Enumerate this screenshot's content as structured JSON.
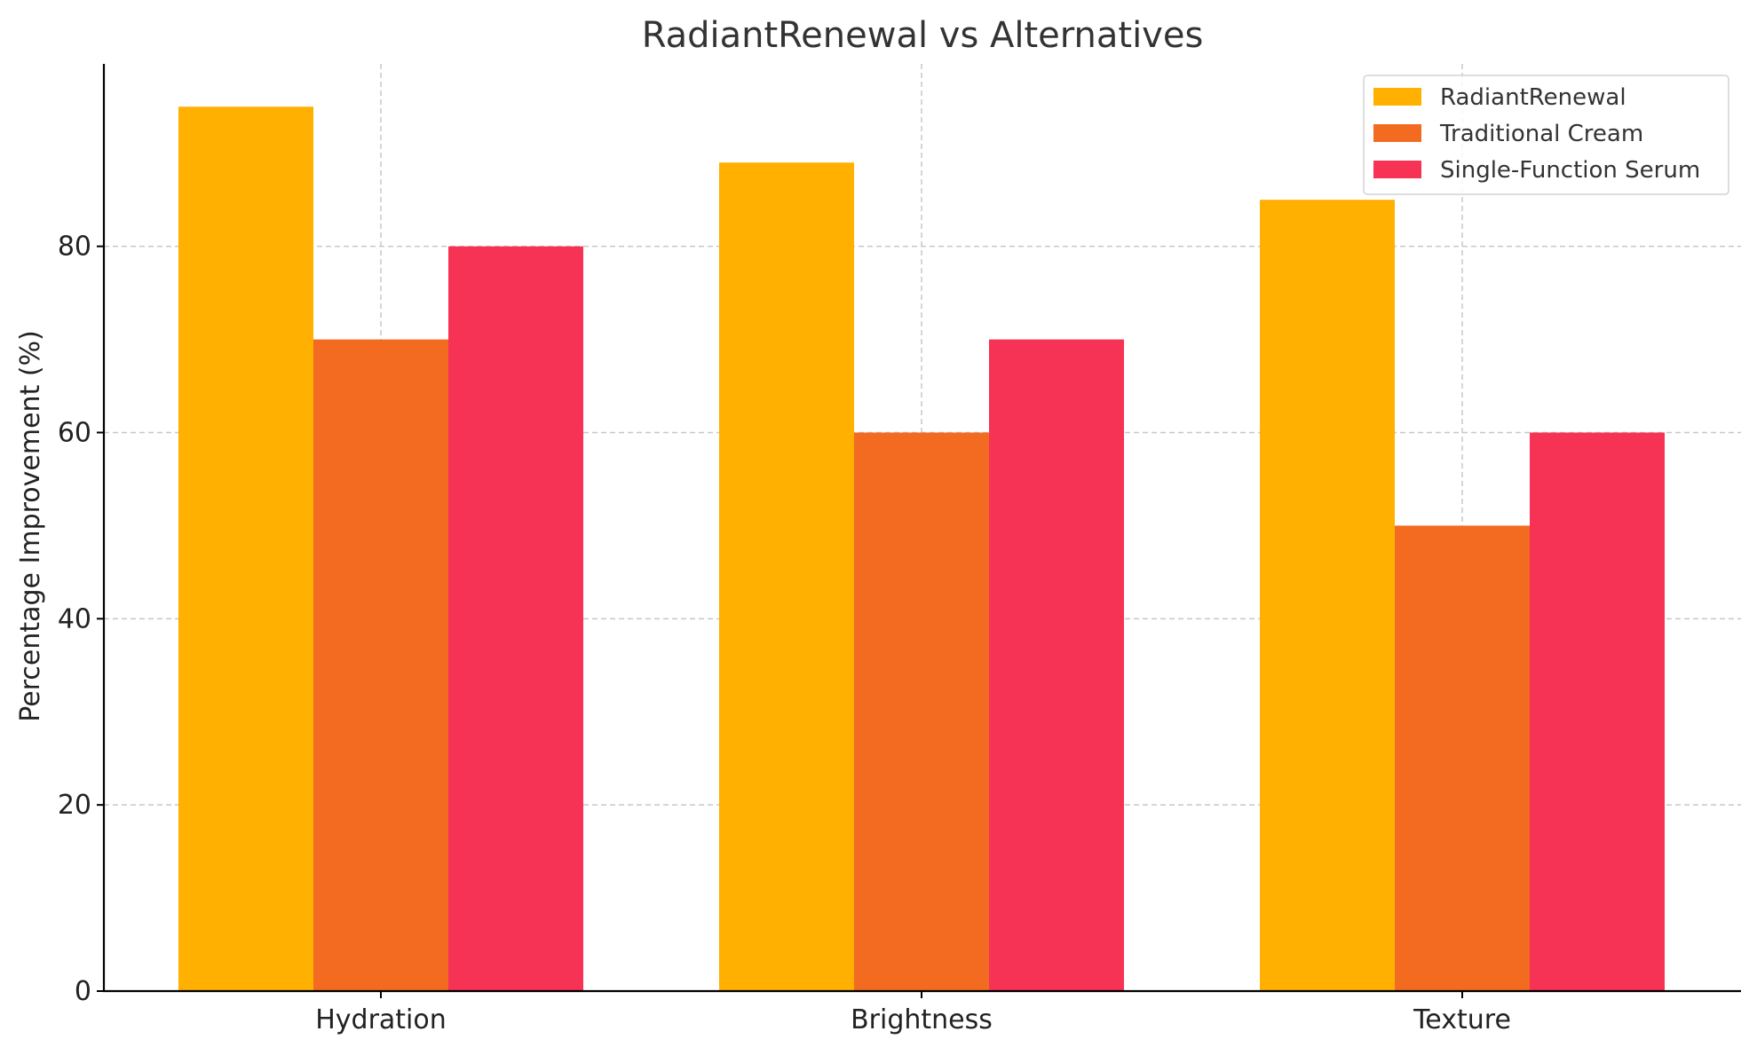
{
  "chart_data": {
    "type": "bar",
    "title": "RadiantRenewal vs Alternatives",
    "xlabel": "",
    "ylabel": "Percentage Improvement (%)",
    "categories": [
      "Hydration",
      "Brightness",
      "Texture"
    ],
    "series": [
      {
        "name": "RadiantRenewal",
        "values": [
          95,
          89,
          85
        ],
        "color": "#FFB000"
      },
      {
        "name": "Traditional Cream",
        "values": [
          70,
          60,
          50
        ],
        "color": "#F26B21"
      },
      {
        "name": "Single-Function Serum",
        "values": [
          80,
          70,
          60
        ],
        "color": "#F63355"
      }
    ],
    "ylim": [
      0,
      100
    ],
    "yticks": [
      0,
      20,
      40,
      60,
      80
    ],
    "grid": true,
    "legend_position": "top-right"
  }
}
